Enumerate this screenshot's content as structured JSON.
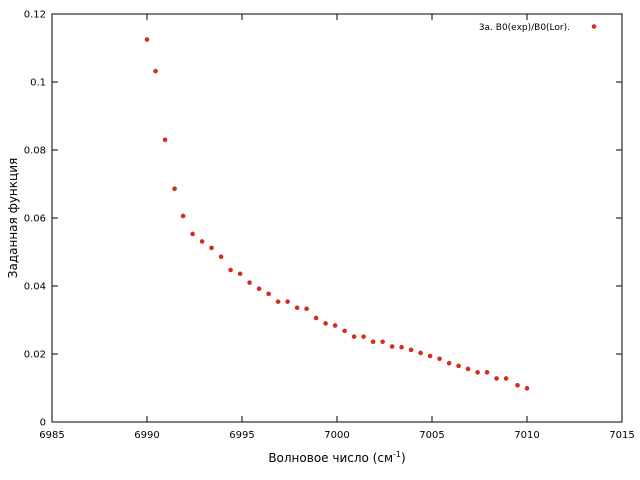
{
  "chart_data": {
    "type": "scatter",
    "xlabel": "Волновое число (см",
    "xlabel_sup": "-1",
    "xlabel_close": ")",
    "ylabel": "Заданная функция",
    "xlim": [
      6985,
      7015
    ],
    "ylim": [
      0,
      0.12
    ],
    "x_ticks": [
      "6985",
      "6990",
      "6995",
      "7000",
      "7005",
      "7010",
      "7015"
    ],
    "y_ticks": [
      "0",
      "0.02",
      "0.04",
      "0.06",
      "0.08",
      "0.1",
      "0.12"
    ],
    "grid": false,
    "legend_position": "top-right",
    "series": [
      {
        "name": "3a. B0(exp)/B0(Lor).",
        "color": "#d62b1e",
        "points": [
          [
            6990.0,
            0.1125
          ],
          [
            6990.45,
            0.1032
          ],
          [
            6990.95,
            0.083
          ],
          [
            6991.45,
            0.0686
          ],
          [
            6991.9,
            0.0606
          ],
          [
            6992.4,
            0.0553
          ],
          [
            6992.9,
            0.0531
          ],
          [
            6993.4,
            0.0512
          ],
          [
            6993.9,
            0.0486
          ],
          [
            6994.4,
            0.0447
          ],
          [
            6994.9,
            0.0436
          ],
          [
            6995.4,
            0.041
          ],
          [
            6995.9,
            0.0392
          ],
          [
            6996.4,
            0.0377
          ],
          [
            6996.9,
            0.0354
          ],
          [
            6997.4,
            0.0354
          ],
          [
            6997.9,
            0.0336
          ],
          [
            6998.4,
            0.0333
          ],
          [
            6998.9,
            0.0306
          ],
          [
            6999.4,
            0.029
          ],
          [
            6999.9,
            0.0284
          ],
          [
            7000.4,
            0.0268
          ],
          [
            7000.9,
            0.0251
          ],
          [
            7001.4,
            0.0251
          ],
          [
            7001.9,
            0.0236
          ],
          [
            7002.4,
            0.0236
          ],
          [
            7002.9,
            0.0222
          ],
          [
            7003.4,
            0.022
          ],
          [
            7003.9,
            0.0212
          ],
          [
            7004.4,
            0.0203
          ],
          [
            7004.9,
            0.0194
          ],
          [
            7005.4,
            0.0186
          ],
          [
            7005.9,
            0.0173
          ],
          [
            7006.4,
            0.0165
          ],
          [
            7006.9,
            0.0156
          ],
          [
            7007.4,
            0.0146
          ],
          [
            7007.9,
            0.0146
          ],
          [
            7008.4,
            0.0128
          ],
          [
            7008.9,
            0.0128
          ],
          [
            7009.5,
            0.0108
          ],
          [
            7010.0,
            0.0099
          ]
        ]
      }
    ]
  }
}
